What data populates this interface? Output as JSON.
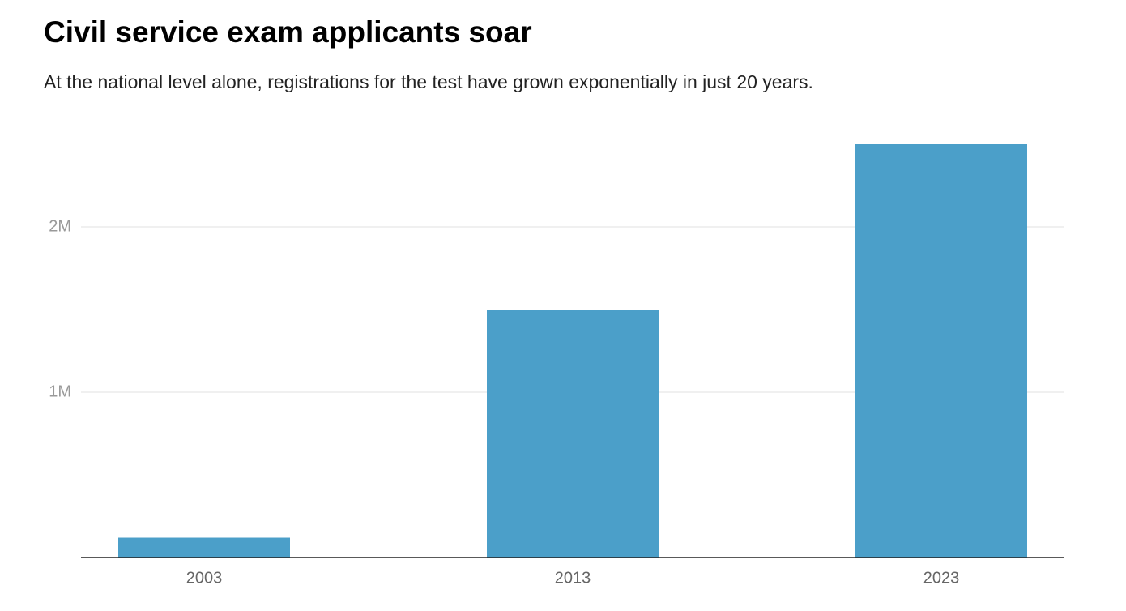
{
  "chart_data": {
    "type": "bar",
    "title": "Civil service exam applicants soar",
    "subtitle": "At the national level alone, registrations for the test have grown exponentially in just 20 years.",
    "categories": [
      "2003",
      "2013",
      "2023"
    ],
    "values": [
      120000,
      1500000,
      2500000
    ],
    "color": "#4b9fc9",
    "ylim": [
      0,
      2500000
    ],
    "yticks": [
      {
        "value": 1000000,
        "label": "1M"
      },
      {
        "value": 2000000,
        "label": "2M"
      }
    ],
    "grid": true
  }
}
